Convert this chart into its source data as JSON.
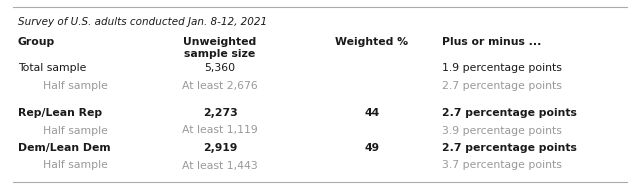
{
  "title": "Survey of U.S. adults conducted Jan. 8-12, 2021",
  "headers": [
    "Group",
    "Unweighted\nsample size",
    "Weighted %",
    "Plus or minus ..."
  ],
  "col_align": [
    "left",
    "center",
    "center",
    "left"
  ],
  "rows": [
    {
      "group": "Total sample",
      "sample": "5,360",
      "weighted": "",
      "plusminus": "1.9 percentage points",
      "bold": false,
      "gray": false
    },
    {
      "group": "Half sample",
      "sample": "At least 2,676",
      "weighted": "",
      "plusminus": "2.7 percentage points",
      "bold": false,
      "gray": true
    },
    {
      "group": "",
      "sample": "",
      "weighted": "",
      "plusminus": "",
      "bold": false,
      "gray": false
    },
    {
      "group": "Rep/Lean Rep",
      "sample": "2,273",
      "weighted": "44",
      "plusminus": "2.7 percentage points",
      "bold": true,
      "gray": false
    },
    {
      "group": "Half sample",
      "sample": "At least 1,119",
      "weighted": "",
      "plusminus": "3.9 percentage points",
      "bold": false,
      "gray": true
    },
    {
      "group": "Dem/Lean Dem",
      "sample": "2,919",
      "weighted": "49",
      "plusminus": "2.7 percentage points",
      "bold": true,
      "gray": false
    },
    {
      "group": "Half sample",
      "sample": "At least 1,443",
      "weighted": "",
      "plusminus": "3.7 percentage points",
      "bold": false,
      "gray": true
    }
  ],
  "normal_color": "#1a1a1a",
  "gray_color": "#999999",
  "line_color": "#aaaaaa",
  "header_fontsize": 7.8,
  "title_fontsize": 7.5,
  "data_fontsize": 7.8,
  "bg_color": "#ffffff"
}
